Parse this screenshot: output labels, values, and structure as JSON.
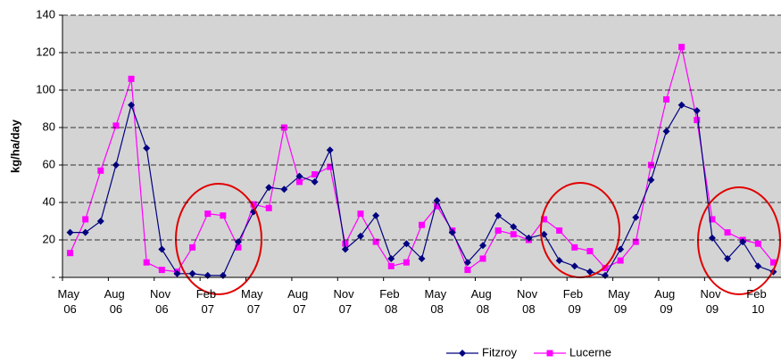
{
  "chart_data": {
    "type": "line",
    "y_label": "kg/ha/day",
    "categories": [
      "May 06",
      null,
      null,
      "Aug 06",
      null,
      null,
      "Nov 06",
      null,
      null,
      "Feb 07",
      null,
      null,
      "May 07",
      null,
      null,
      "Aug 07",
      null,
      null,
      "Nov 07",
      null,
      null,
      "Feb 08",
      null,
      null,
      "May 08",
      null,
      null,
      "Aug 08",
      null,
      null,
      "Nov 08",
      null,
      null,
      "Feb 09",
      null,
      null,
      "May 09",
      null,
      null,
      "Aug 09",
      null,
      null,
      "Nov 09",
      null,
      null,
      "Feb 10",
      null
    ],
    "series": [
      {
        "name": "Fitzroy",
        "color": "#000080",
        "marker": "diamond",
        "values": [
          24,
          24,
          30,
          60,
          92,
          69,
          15,
          2,
          2,
          1,
          1,
          19,
          35,
          48,
          47,
          54,
          51,
          68,
          15,
          22,
          33,
          10,
          18,
          10,
          41,
          24,
          8,
          17,
          33,
          27,
          21,
          23,
          9,
          6,
          3,
          1,
          15,
          32,
          52,
          78,
          92,
          89,
          21,
          10,
          19,
          6,
          3
        ]
      },
      {
        "name": "Lucerne",
        "color": "#ff00ff",
        "marker": "square",
        "values": [
          13,
          31,
          57,
          81,
          106,
          8,
          4,
          3,
          16,
          34,
          33,
          16,
          39,
          37,
          80,
          51,
          55,
          59,
          18,
          34,
          19,
          6,
          8,
          28,
          38,
          25,
          4,
          10,
          25,
          23,
          20,
          31,
          25,
          16,
          14,
          5,
          9,
          19,
          60,
          95,
          123,
          84,
          31,
          24,
          20,
          18,
          8
        ]
      }
    ],
    "ylim": [
      0,
      140
    ],
    "yticks": [
      {
        "value": 0,
        "label": "-"
      },
      20,
      40,
      60,
      80,
      100,
      120,
      140
    ],
    "grid": true,
    "legend": "bottom"
  }
}
